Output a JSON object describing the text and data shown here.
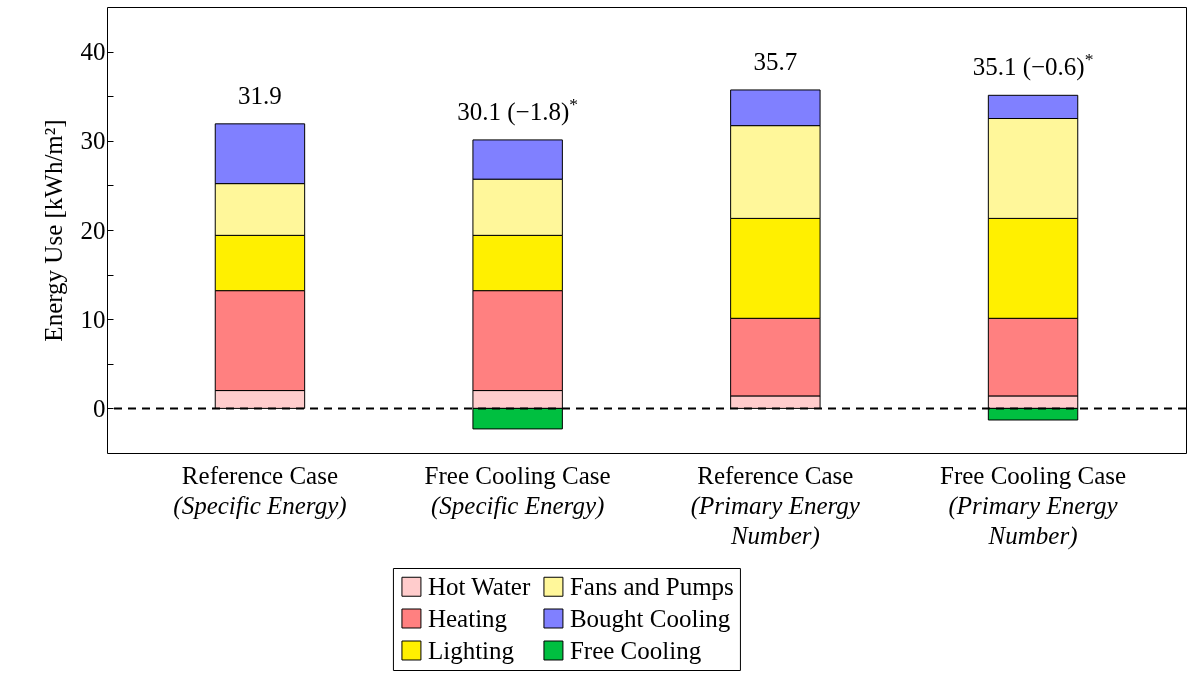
{
  "chart_data": {
    "type": "bar",
    "stacked": true,
    "ylabel": "Energy Use [kWh/m²]",
    "categories": [
      "Reference Case (Specific Energy)",
      "Free Cooling Case (Specific Energy)",
      "Reference Case (Primary Energy Number)",
      "Free Cooling Case (Primary Energy Number)"
    ],
    "series": [
      {
        "name": "Hot Water",
        "color": "#ffcccc",
        "values": [
          2.0,
          2.0,
          1.4,
          1.4
        ]
      },
      {
        "name": "Heating",
        "color": "#ff8080",
        "values": [
          11.2,
          11.2,
          8.7,
          8.7
        ]
      },
      {
        "name": "Lighting",
        "color": "#fff000",
        "values": [
          6.2,
          6.2,
          11.2,
          11.2
        ]
      },
      {
        "name": "Fans and Pumps",
        "color": "#fff79a",
        "values": [
          5.8,
          6.3,
          10.4,
          11.2
        ]
      },
      {
        "name": "Bought Cooling",
        "color": "#8080ff",
        "values": [
          6.7,
          4.4,
          4.0,
          2.6
        ]
      },
      {
        "name": "Free Cooling",
        "color": "#00bf40",
        "values": [
          null,
          -2.3,
          null,
          -1.3
        ]
      }
    ],
    "totals": [
      "31.9",
      "30.1 (−1.8)$^{*}$",
      "35.7",
      "35.1 (−0.6)$^{*}$"
    ],
    "ylim": [
      -5,
      45
    ],
    "yticks": [
      0,
      {
        "value": 5,
        "label": null
      },
      10,
      {
        "value": 15,
        "label": null
      },
      20,
      {
        "value": 25,
        "label": null
      },
      30,
      {
        "value": 35,
        "label": null
      },
      40
    ],
    "ref_lines": [
      {
        "axis": "y",
        "value": 0,
        "color": "#000000",
        "line_style": "dashed"
      }
    ],
    "grid": false,
    "legend": "bottom"
  }
}
